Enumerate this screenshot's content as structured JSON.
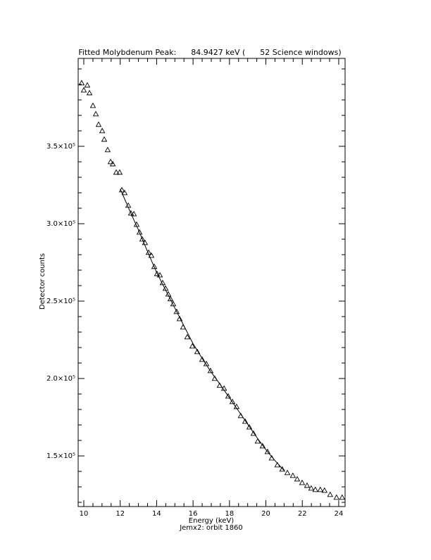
{
  "chart_data": {
    "type": "scatter",
    "title": "Fitted Molybdenum Peak:      84.9427 keV (      52 Science windows)",
    "x_label": "Energy (keV)",
    "subtitle": "Jemx2: orbit 1860",
    "y_label": "Detector counts",
    "marker": "triangle",
    "color": "#000000",
    "x": [
      9.88,
      10.0,
      10.19,
      10.31,
      10.5,
      10.66,
      10.81,
      11.01,
      11.12,
      11.31,
      11.47,
      11.59,
      11.78,
      11.97,
      12.09,
      12.24,
      12.44,
      12.59,
      12.75,
      12.9,
      13.06,
      13.21,
      13.36,
      13.56,
      13.71,
      13.87,
      14.02,
      14.18,
      14.33,
      14.49,
      14.64,
      14.76,
      14.91,
      15.1,
      15.26,
      15.45,
      15.68,
      15.96,
      16.23,
      16.5,
      16.73,
      16.96,
      17.19,
      17.46,
      17.7,
      17.93,
      18.16,
      18.39,
      18.62,
      18.86,
      19.09,
      19.32,
      19.55,
      19.82,
      20.09,
      20.32,
      20.63,
      20.9,
      21.18,
      21.48,
      21.72,
      21.99,
      22.26,
      22.49,
      22.72,
      22.99,
      23.22,
      23.53,
      23.88,
      24.19
    ],
    "values": [
      390900,
      386300,
      389500,
      384500,
      376300,
      370900,
      364100,
      360000,
      354500,
      347700,
      340000,
      338600,
      333200,
      333200,
      321800,
      320000,
      311800,
      306800,
      306300,
      299500,
      294500,
      290000,
      287700,
      281400,
      279500,
      272300,
      267700,
      266800,
      261800,
      258200,
      254500,
      251400,
      248200,
      243200,
      238600,
      233200,
      226800,
      220900,
      217300,
      212300,
      209500,
      205000,
      200000,
      195500,
      193600,
      188600,
      185000,
      181800,
      175900,
      172300,
      168600,
      164500,
      159500,
      156400,
      152700,
      148600,
      144100,
      141400,
      139100,
      137300,
      135000,
      132700,
      130900,
      129100,
      128200,
      128200,
      127700,
      125000,
      123200,
      123200
    ],
    "fit": {
      "color": "#000000",
      "x": [
        12.0,
        12.5,
        13.0,
        13.5,
        14.0,
        14.5,
        15.0,
        15.5,
        16.0,
        16.5,
        17.0,
        17.5,
        18.0,
        18.5,
        19.0,
        19.5,
        20.0,
        20.5,
        21.0
      ],
      "values": [
        322500,
        309000,
        296000,
        282000,
        268500,
        257000,
        245500,
        234000,
        222500,
        213000,
        204000,
        196000,
        187500,
        179000,
        170500,
        162000,
        154000,
        147000,
        140500
      ]
    },
    "xlim": [
      9.69,
      24.35
    ],
    "ylim": [
      117300,
      406800
    ],
    "xticks": [
      10,
      12,
      14,
      16,
      18,
      20,
      22,
      24
    ],
    "xminorticks": [
      10.5,
      11,
      11.5,
      12.5,
      13,
      13.5,
      14.5,
      15,
      15.5,
      16.5,
      17,
      17.5,
      18.5,
      19,
      19.5,
      20.5,
      21,
      21.5,
      22.5,
      23,
      23.5
    ],
    "yticks": [
      {
        "value": 150000,
        "label": "1.5×10⁵"
      },
      {
        "value": 200000,
        "label": "2.0×10⁵"
      },
      {
        "value": 250000,
        "label": "2.5×10⁵"
      },
      {
        "value": 300000,
        "label": "3.0×10⁵"
      },
      {
        "value": 350000,
        "label": "3.5×10⁵"
      }
    ],
    "yminorticks": [
      120000,
      130000,
      140000,
      160000,
      170000,
      180000,
      190000,
      210000,
      220000,
      230000,
      240000,
      260000,
      270000,
      280000,
      290000,
      310000,
      320000,
      330000,
      340000,
      360000,
      370000,
      380000,
      390000,
      400000
    ],
    "grid": false
  }
}
